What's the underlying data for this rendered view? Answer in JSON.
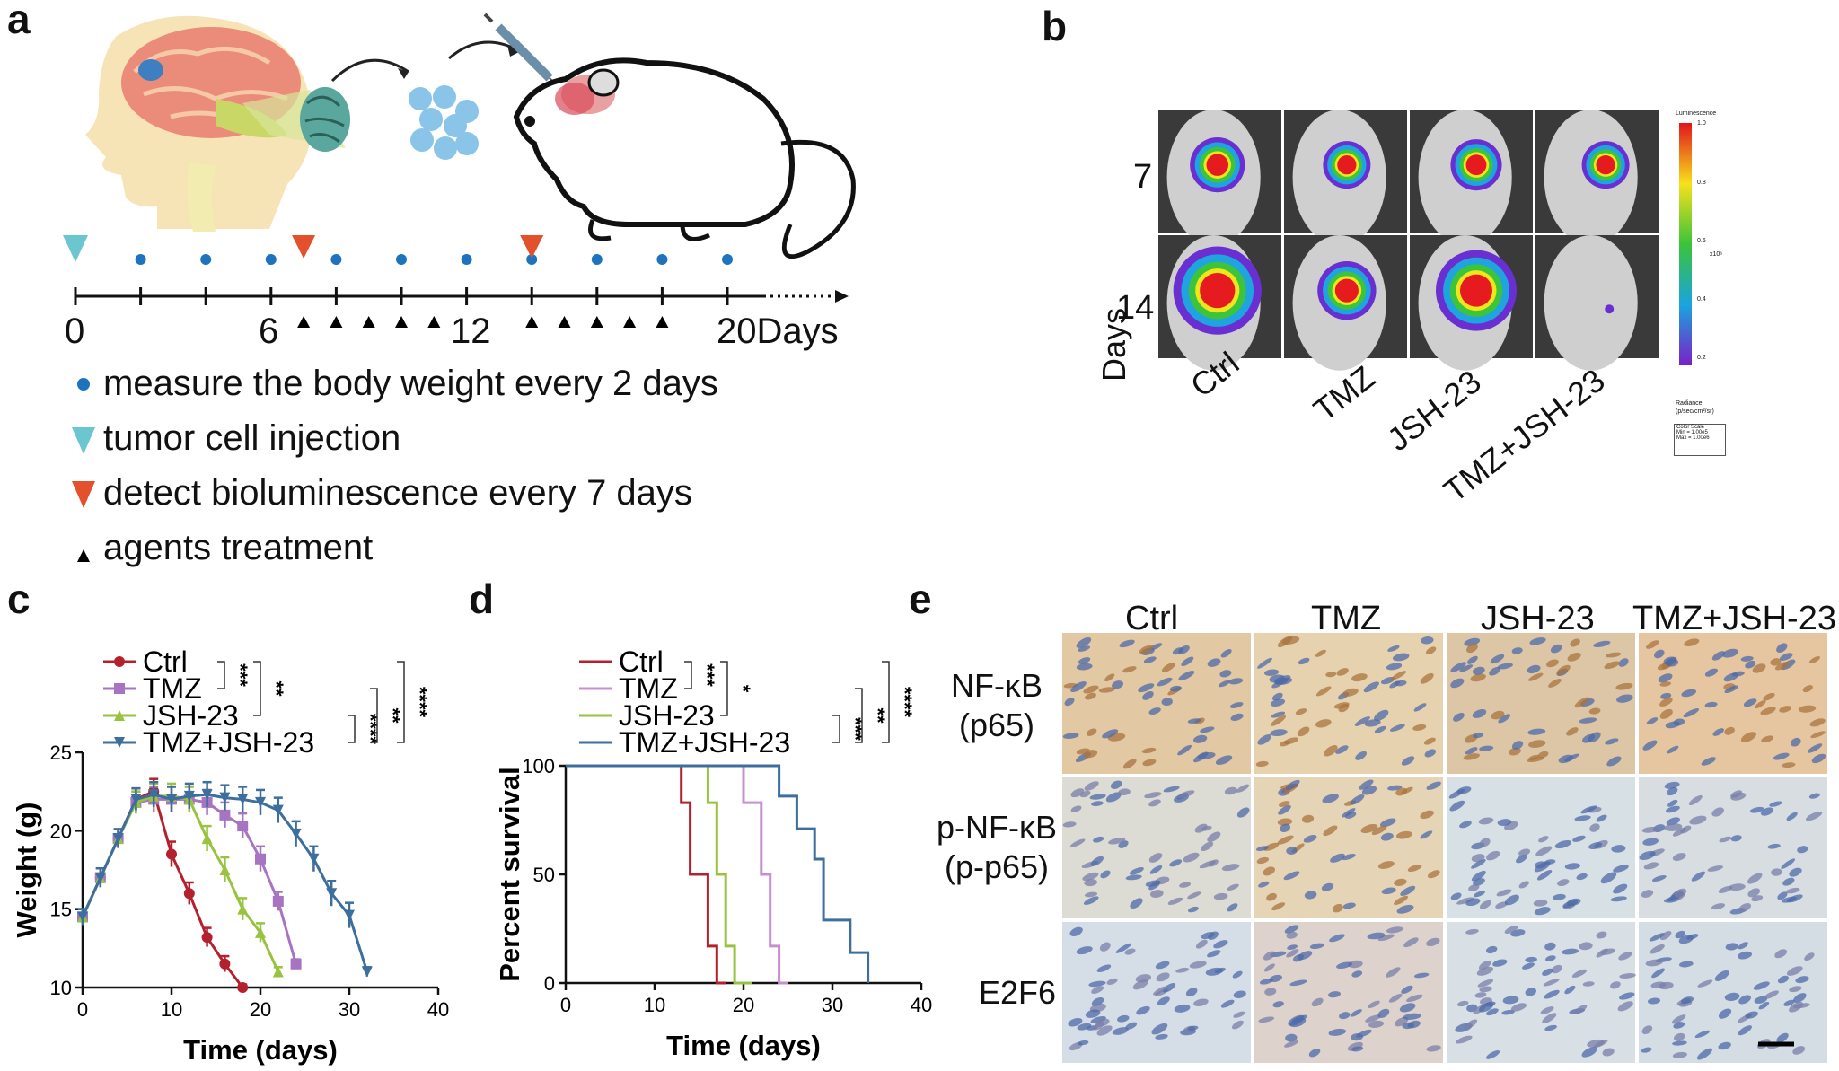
{
  "panels": {
    "a": "a",
    "b": "b",
    "c": "c",
    "d": "d",
    "e": "e"
  },
  "panel_a": {
    "timeline_ticks": [
      "0",
      "6",
      "12",
      "20Days"
    ],
    "legend": [
      "measure the body weight every 2 days",
      "tumor cell injection",
      "detect bioluminescence every 7 days",
      "agents treatment"
    ],
    "colors": {
      "weight_dot": "#1e73be",
      "injection": "#6cc6cf",
      "biolum": "#e2512b",
      "treatment": "#000000"
    }
  },
  "panel_b": {
    "row_labels": [
      "7",
      "14"
    ],
    "axis_label": "Days",
    "col_labels": [
      "Ctrl",
      "TMZ",
      "JSH-23",
      "TMZ+JSH-23"
    ],
    "colorbar_title": "Luminescence",
    "colorbar_ticks": [
      "1.0",
      "0.8",
      "0.6",
      "0.4",
      "0.2"
    ],
    "colorbar_unit": "x10⁶",
    "colorbar_bottom": [
      "Radiance",
      "(p/sec/cm²/sr)"
    ],
    "color_scale": [
      "Color Scale",
      "Min = 1.00e5",
      "Max = 1.00e6"
    ]
  },
  "panel_c": {
    "chart_data": {
      "type": "line",
      "xlabel": "Time (days)",
      "ylabel": "Weight (g)",
      "xlim": [
        0,
        40
      ],
      "ylim": [
        10,
        25
      ],
      "xticks": [
        "0",
        "10",
        "20",
        "30",
        "40"
      ],
      "yticks": [
        "10",
        "15",
        "20",
        "25"
      ],
      "series": [
        {
          "name": "Ctrl",
          "color": "#b5202e",
          "marker": "circle",
          "x": [
            0,
            2,
            4,
            6,
            8,
            10,
            12,
            14,
            16,
            18
          ],
          "y": [
            14.5,
            17,
            19.5,
            22,
            22.5,
            18.5,
            16,
            13.2,
            11.5,
            10
          ],
          "err": [
            0.5,
            0.6,
            0.6,
            0.7,
            0.8,
            0.8,
            0.7,
            0.6,
            0.5,
            0.2
          ]
        },
        {
          "name": "TMZ",
          "color": "#a774c1",
          "marker": "square",
          "x": [
            0,
            2,
            4,
            6,
            8,
            10,
            12,
            14,
            16,
            18,
            20,
            22,
            24
          ],
          "y": [
            14.5,
            17,
            19.5,
            21.8,
            22,
            22,
            22,
            21.8,
            21,
            20.3,
            18.2,
            15.5,
            11.5
          ],
          "err": [
            0.5,
            0.6,
            0.6,
            0.7,
            0.8,
            0.8,
            0.8,
            0.8,
            0.8,
            0.8,
            0.8,
            0.6,
            0.3
          ]
        },
        {
          "name": "JSH-23",
          "color": "#98c341",
          "marker": "triangle",
          "x": [
            0,
            2,
            4,
            6,
            8,
            10,
            12,
            14,
            16,
            18,
            20,
            22
          ],
          "y": [
            14.5,
            17,
            19.5,
            21.8,
            22.2,
            22.2,
            22,
            19.5,
            17.5,
            15,
            13.5,
            11
          ],
          "err": [
            0.5,
            0.6,
            0.6,
            0.7,
            0.8,
            0.8,
            0.8,
            0.8,
            0.8,
            0.7,
            0.6,
            0.3
          ]
        },
        {
          "name": "TMZ+JSH-23",
          "color": "#3c6e9e",
          "marker": "invtriangle",
          "x": [
            0,
            2,
            4,
            6,
            8,
            10,
            12,
            14,
            16,
            18,
            20,
            22,
            24,
            26,
            28,
            30,
            32
          ],
          "y": [
            14.5,
            17,
            19.5,
            22,
            22.3,
            22,
            22.2,
            22.3,
            22.1,
            22,
            21.8,
            21.3,
            19.8,
            18.2,
            16,
            14.6,
            11
          ],
          "err": [
            0.5,
            0.6,
            0.6,
            0.7,
            0.8,
            0.8,
            0.8,
            0.8,
            0.8,
            0.8,
            0.8,
            0.8,
            0.8,
            0.8,
            0.8,
            0.8,
            0.3
          ]
        }
      ],
      "significance": [
        "***",
        "**",
        "****",
        "**",
        "****"
      ]
    }
  },
  "panel_d": {
    "chart_data": {
      "type": "line",
      "xlabel": "Time (days)",
      "ylabel": "Percent survival",
      "xlim": [
        0,
        40
      ],
      "ylim": [
        0,
        100
      ],
      "xticks": [
        "0",
        "10",
        "20",
        "30",
        "40"
      ],
      "yticks": [
        "0",
        "50",
        "100"
      ],
      "series": [
        {
          "name": "Ctrl",
          "color": "#b5202e",
          "steps": [
            [
              0,
              100
            ],
            [
              13,
              100
            ],
            [
              13,
              83
            ],
            [
              14,
              83
            ],
            [
              14,
              50
            ],
            [
              16,
              50
            ],
            [
              16,
              17
            ],
            [
              17,
              17
            ],
            [
              17,
              0
            ],
            [
              18,
              0
            ]
          ]
        },
        {
          "name": "TMZ",
          "color": "#c58fd2",
          "steps": [
            [
              0,
              100
            ],
            [
              20,
              100
            ],
            [
              20,
              83
            ],
            [
              22,
              83
            ],
            [
              22,
              50
            ],
            [
              23,
              50
            ],
            [
              23,
              17
            ],
            [
              24,
              17
            ],
            [
              24,
              0
            ],
            [
              25,
              0
            ]
          ]
        },
        {
          "name": "JSH-23",
          "color": "#98c341",
          "steps": [
            [
              0,
              100
            ],
            [
              16,
              100
            ],
            [
              16,
              83
            ],
            [
              17,
              83
            ],
            [
              17,
              50
            ],
            [
              18,
              50
            ],
            [
              18,
              17
            ],
            [
              19,
              17
            ],
            [
              19,
              0
            ],
            [
              21,
              0
            ]
          ]
        },
        {
          "name": "TMZ+JSH-23",
          "color": "#3c6e9e",
          "steps": [
            [
              0,
              100
            ],
            [
              24,
              100
            ],
            [
              24,
              86
            ],
            [
              26,
              86
            ],
            [
              26,
              71
            ],
            [
              28,
              71
            ],
            [
              28,
              57
            ],
            [
              29,
              57
            ],
            [
              29,
              29
            ],
            [
              32,
              29
            ],
            [
              32,
              14
            ],
            [
              34,
              14
            ],
            [
              34,
              0
            ]
          ]
        }
      ],
      "significance": [
        "***",
        "*",
        "***",
        "**",
        "****"
      ]
    }
  },
  "panel_e": {
    "col_labels": [
      "Ctrl",
      "TMZ",
      "JSH-23",
      "TMZ+JSH-23"
    ],
    "row_labels": [
      [
        "NF-κB",
        "(p65)"
      ],
      [
        "p-NF-κB",
        "(p-p65)"
      ],
      [
        "E2F6",
        ""
      ]
    ]
  }
}
